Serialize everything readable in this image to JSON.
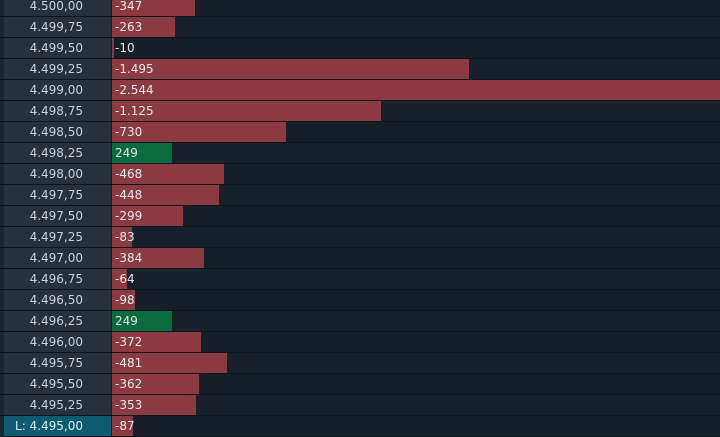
{
  "ladder": {
    "colors": {
      "negative_bar": "#8b3a42",
      "positive_bar": "#0b6a3e",
      "last_price_highlight": "#0f5a6e"
    },
    "max_abs_value": 2544,
    "rows": [
      {
        "price": "4.500,00",
        "value_label": "-347",
        "value": -347
      },
      {
        "price": "4.499,75",
        "value_label": "-263",
        "value": -263
      },
      {
        "price": "4.499,50",
        "value_label": "-10",
        "value": -10
      },
      {
        "price": "4.499,25",
        "value_label": "-1.495",
        "value": -1495
      },
      {
        "price": "4.499,00",
        "value_label": "-2.544",
        "value": -2544
      },
      {
        "price": "4.498,75",
        "value_label": "-1.125",
        "value": -1125
      },
      {
        "price": "4.498,50",
        "value_label": "-730",
        "value": -730
      },
      {
        "price": "4.498,25",
        "value_label": "249",
        "value": 249
      },
      {
        "price": "4.498,00",
        "value_label": "-468",
        "value": -468
      },
      {
        "price": "4.497,75",
        "value_label": "-448",
        "value": -448
      },
      {
        "price": "4.497,50",
        "value_label": "-299",
        "value": -299
      },
      {
        "price": "4.497,25",
        "value_label": "-83",
        "value": -83
      },
      {
        "price": "4.497,00",
        "value_label": "-384",
        "value": -384
      },
      {
        "price": "4.496,75",
        "value_label": "-64",
        "value": -64
      },
      {
        "price": "4.496,50",
        "value_label": "-98",
        "value": -98
      },
      {
        "price": "4.496,25",
        "value_label": "249",
        "value": 249
      },
      {
        "price": "4.496,00",
        "value_label": "-372",
        "value": -372
      },
      {
        "price": "4.495,75",
        "value_label": "-481",
        "value": -481
      },
      {
        "price": "4.495,50",
        "value_label": "-362",
        "value": -362
      },
      {
        "price": "4.495,25",
        "value_label": "-353",
        "value": -353
      },
      {
        "price": "L: 4.495,00",
        "value_label": "-87",
        "value": -87,
        "last": true
      }
    ]
  }
}
